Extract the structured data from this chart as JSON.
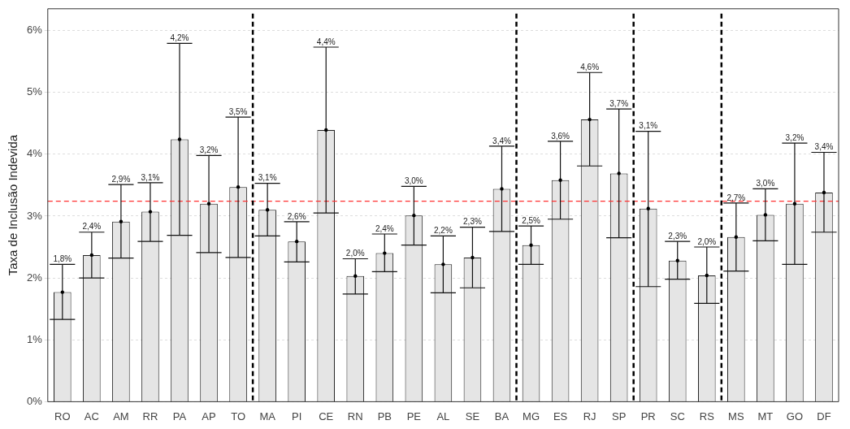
{
  "chart_data": {
    "type": "bar",
    "ylabel": "Taxa de Inclusão Indevida",
    "categories": [
      "RO",
      "AC",
      "AM",
      "RR",
      "PA",
      "AP",
      "TO",
      "MA",
      "PI",
      "CE",
      "RN",
      "PB",
      "PE",
      "AL",
      "SE",
      "BA",
      "MG",
      "ES",
      "RJ",
      "SP",
      "PR",
      "SC",
      "RS",
      "MS",
      "MT",
      "GO",
      "DF"
    ],
    "values": [
      1.77,
      2.37,
      2.91,
      3.07,
      4.24,
      3.2,
      3.47,
      3.1,
      2.59,
      4.39,
      2.03,
      2.4,
      3.01,
      2.22,
      2.33,
      3.44,
      2.53,
      3.58,
      4.56,
      3.69,
      3.12,
      2.28,
      2.04,
      2.66,
      3.02,
      3.2,
      3.38
    ],
    "errors": [
      [
        1.33,
        2.22
      ],
      [
        2.0,
        2.74
      ],
      [
        2.32,
        3.51
      ],
      [
        2.59,
        3.54
      ],
      [
        2.69,
        5.79
      ],
      [
        2.41,
        3.98
      ],
      [
        2.33,
        4.6
      ],
      [
        2.68,
        3.53
      ],
      [
        2.26,
        2.91
      ],
      [
        3.05,
        5.73
      ],
      [
        1.74,
        2.31
      ],
      [
        2.1,
        2.71
      ],
      [
        2.53,
        3.48
      ],
      [
        1.76,
        2.68
      ],
      [
        1.84,
        2.82
      ],
      [
        2.75,
        4.13
      ],
      [
        2.22,
        2.84
      ],
      [
        2.95,
        4.21
      ],
      [
        3.81,
        5.32
      ],
      [
        2.65,
        4.73
      ],
      [
        1.86,
        4.37
      ],
      [
        1.98,
        2.59
      ],
      [
        1.59,
        2.5
      ],
      [
        2.11,
        3.21
      ],
      [
        2.6,
        3.44
      ],
      [
        2.22,
        4.18
      ],
      [
        2.74,
        4.03
      ]
    ],
    "annotations": [
      {
        "text": "1,8%",
        "x": "RO",
        "y": 2.22
      },
      {
        "text": "2,4%",
        "x": "AC",
        "y": 2.74
      },
      {
        "text": "2,9%",
        "x": "AM",
        "y": 3.51
      },
      {
        "text": "3,1%",
        "x": "RR",
        "y": 3.54
      },
      {
        "text": "4,2%",
        "x": "PA",
        "y": 5.79
      },
      {
        "text": "3,2%",
        "x": "AP",
        "y": 3.98
      },
      {
        "text": "3,5%",
        "x": "TO",
        "y": 4.6
      },
      {
        "text": "3,1%",
        "x": "MA",
        "y": 3.53
      },
      {
        "text": "2,6%",
        "x": "PI",
        "y": 2.91
      },
      {
        "text": "4,4%",
        "x": "CE",
        "y": 5.73
      },
      {
        "text": "2,0%",
        "x": "RN",
        "y": 2.31
      },
      {
        "text": "2,4%",
        "x": "PB",
        "y": 2.71
      },
      {
        "text": "3,0%",
        "x": "PE",
        "y": 3.48
      },
      {
        "text": "2,2%",
        "x": "AL",
        "y": 2.68
      },
      {
        "text": "2,3%",
        "x": "SE",
        "y": 2.82
      },
      {
        "text": "3,4%",
        "x": "BA",
        "y": 4.13
      },
      {
        "text": "2,5%",
        "x": "MG",
        "y": 2.84
      },
      {
        "text": "3,6%",
        "x": "ES",
        "y": 4.21
      },
      {
        "text": "4,6%",
        "x": "RJ",
        "y": 5.32
      },
      {
        "text": "3,7%",
        "x": "SP",
        "y": 4.73
      },
      {
        "text": "3,1%",
        "x": "PR",
        "y": 4.37
      },
      {
        "text": "2,3%",
        "x": "SC",
        "y": 2.59
      },
      {
        "text": "2,0%",
        "x": "RS",
        "y": 2.5
      },
      {
        "text": "2,7%",
        "x": "MS",
        "y": 3.21
      },
      {
        "text": "3,0%",
        "x": "MT",
        "y": 3.44
      },
      {
        "text": "3,2%",
        "x": "GO",
        "y": 4.18
      },
      {
        "text": "3,4%",
        "x": "DF",
        "y": 4.03
      }
    ],
    "color": "#e5e5e5",
    "ylim": [
      0,
      6.35
    ],
    "yticks": [
      {
        "value": 0,
        "label": "0%"
      },
      {
        "value": 1,
        "label": "1%"
      },
      {
        "value": 2,
        "label": "2%"
      },
      {
        "value": 3,
        "label": "3%"
      },
      {
        "value": 4,
        "label": "4%"
      },
      {
        "value": 5,
        "label": "5%"
      },
      {
        "value": 6,
        "label": "6%"
      }
    ],
    "grid": "y",
    "ref_lines": [
      {
        "axis": "y",
        "value": 3.24,
        "color": "#ff3333",
        "line_style": "dashed"
      }
    ]
  }
}
